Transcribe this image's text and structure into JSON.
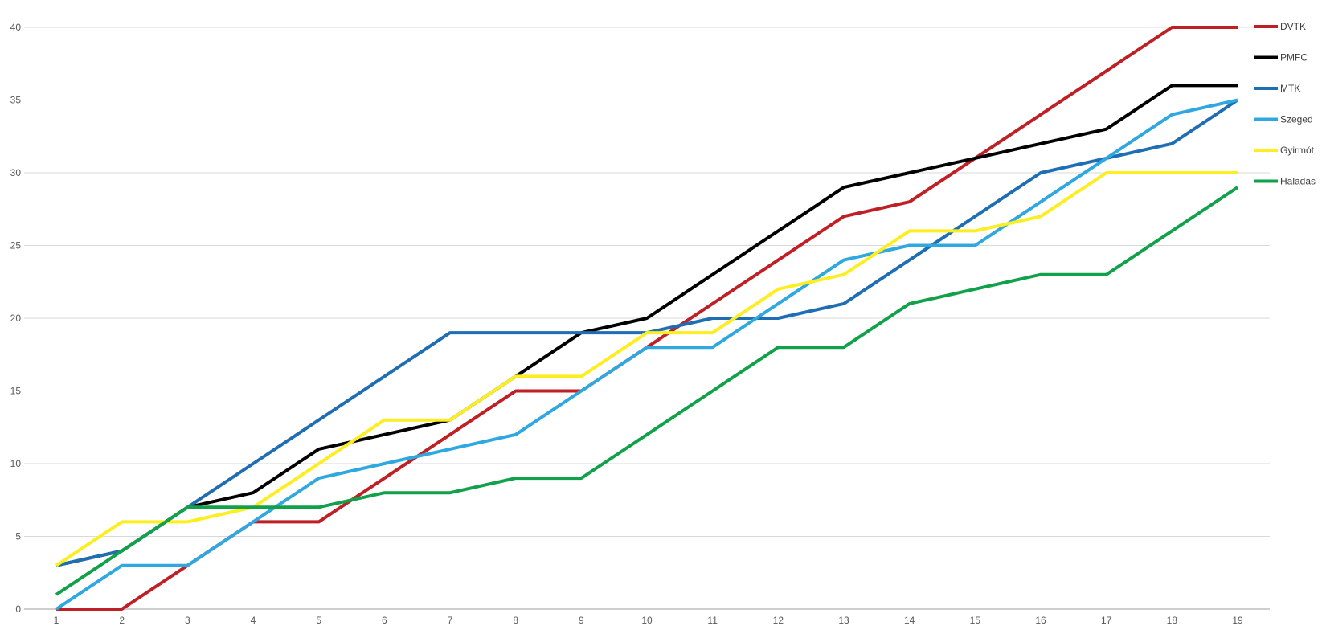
{
  "chart_data": {
    "type": "line",
    "title": "",
    "xlabel": "",
    "ylabel": "",
    "x": [
      1,
      2,
      3,
      4,
      5,
      6,
      7,
      8,
      9,
      10,
      11,
      12,
      13,
      14,
      15,
      16,
      17,
      18,
      19
    ],
    "x_tick_labels": [
      "1",
      "2",
      "3",
      "4",
      "5",
      "6",
      "7",
      "8",
      "9",
      "10",
      "11",
      "12",
      "13",
      "14",
      "15",
      "16",
      "17",
      "18",
      "19"
    ],
    "y_tick_labels": [
      "0",
      "5",
      "10",
      "15",
      "20",
      "25",
      "30",
      "35",
      "40"
    ],
    "ylim": [
      0,
      40
    ],
    "ytick_step": 5,
    "grid": true,
    "legend_position": "right",
    "background_color": "#ffffff",
    "grid_color": "#d9d9d9",
    "axis_line_color": "#9c9c9c",
    "tick_label_color": "#595959",
    "legend_text_color": "#3f3f3f",
    "series": [
      {
        "name": "DVTK",
        "color": "#bf2026",
        "values": [
          0,
          0,
          3,
          6,
          6,
          9,
          12,
          15,
          15,
          18,
          21,
          24,
          27,
          28,
          31,
          34,
          37,
          40,
          40
        ]
      },
      {
        "name": "PMFC",
        "color": "#000000",
        "values": [
          3,
          4,
          7,
          8,
          11,
          12,
          13,
          16,
          19,
          20,
          23,
          26,
          29,
          30,
          31,
          32,
          33,
          36,
          36
        ]
      },
      {
        "name": "MTK",
        "color": "#1f6db2",
        "values": [
          3,
          4,
          7,
          10,
          13,
          16,
          19,
          19,
          19,
          19,
          20,
          20,
          21,
          24,
          27,
          30,
          31,
          32,
          35
        ]
      },
      {
        "name": "Szeged",
        "color": "#2fa8df",
        "values": [
          0,
          3,
          3,
          6,
          9,
          10,
          11,
          12,
          15,
          18,
          18,
          21,
          24,
          25,
          25,
          28,
          31,
          34,
          35
        ]
      },
      {
        "name": "Gyirmót",
        "color": "#fcee21",
        "values": [
          3,
          6,
          6,
          7,
          10,
          13,
          13,
          16,
          16,
          19,
          19,
          22,
          23,
          26,
          26,
          27,
          30,
          30,
          30
        ]
      },
      {
        "name": "Haladás",
        "color": "#12a14b",
        "values": [
          1,
          4,
          7,
          7,
          7,
          8,
          8,
          9,
          9,
          12,
          15,
          18,
          18,
          21,
          22,
          23,
          23,
          26,
          29
        ]
      }
    ]
  }
}
